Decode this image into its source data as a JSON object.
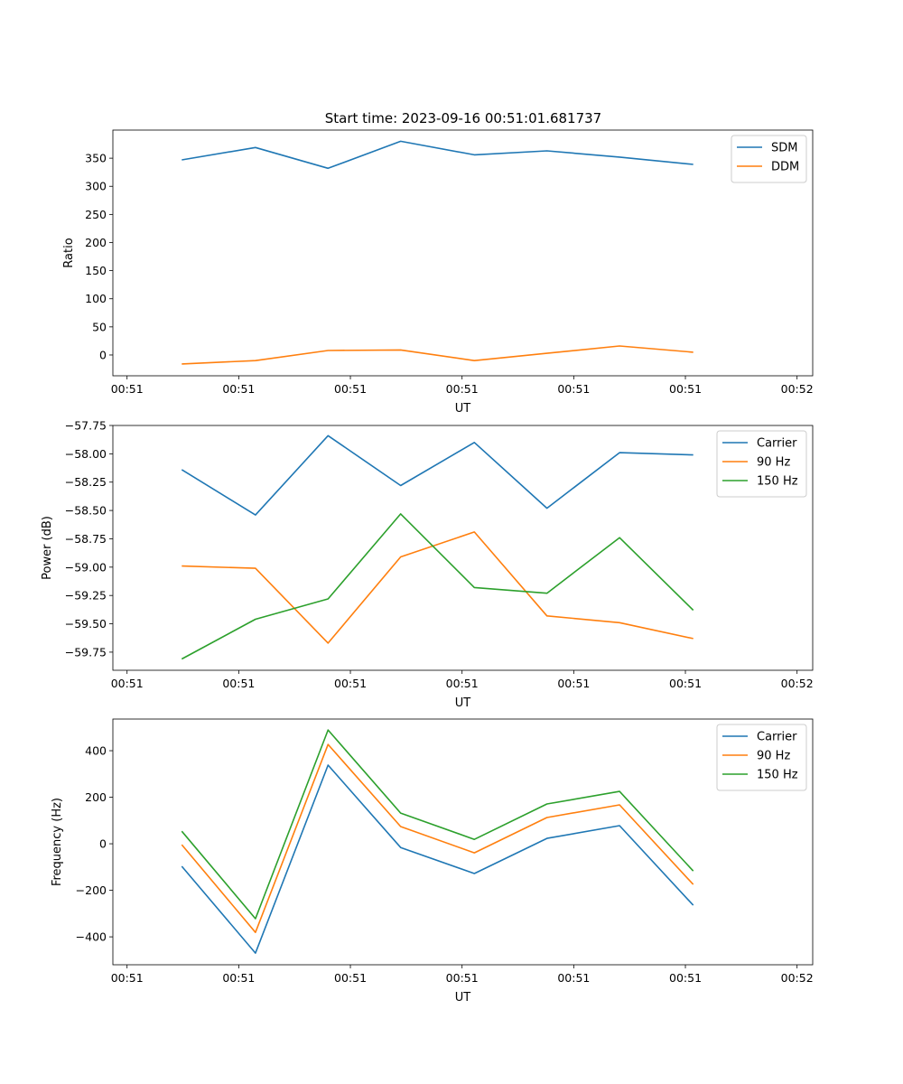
{
  "figure_title": "Start time: 2023-09-16 00:51:01.681737",
  "colors": {
    "c0": "#1f77b4",
    "c1": "#ff7f0e",
    "c2": "#2ca02c"
  },
  "chart_data": [
    {
      "type": "line",
      "title": "Start time: 2023-09-16 00:51:01.681737",
      "xlabel": "UT",
      "ylabel": "Ratio",
      "x_unit": "seconds after 00:51:00",
      "x": [
        4.9,
        11.5,
        18.0,
        24.5,
        31.1,
        37.6,
        44.1,
        50.7
      ],
      "xlim": [
        -1.27,
        61.4
      ],
      "xticks": [
        0,
        10,
        20,
        30,
        40,
        50,
        60
      ],
      "xtick_labels": [
        "00:51",
        "00:51",
        "00:51",
        "00:51",
        "00:51",
        "00:51",
        "00:52"
      ],
      "ylim": [
        -37,
        400
      ],
      "yticks": [
        0,
        50,
        100,
        150,
        200,
        250,
        300,
        350
      ],
      "ytick_labels": [
        "0",
        "50",
        "100",
        "150",
        "200",
        "250",
        "300",
        "350"
      ],
      "legend": "top-right",
      "series": [
        {
          "name": "SDM",
          "color": "#1f77b4",
          "values": [
            347,
            369,
            332,
            380,
            356,
            363,
            352,
            339
          ]
        },
        {
          "name": "DDM",
          "color": "#ff7f0e",
          "values": [
            -16,
            -10,
            8,
            9,
            -10,
            3,
            16,
            5
          ]
        }
      ]
    },
    {
      "type": "line",
      "xlabel": "UT",
      "ylabel": "Power (dB)",
      "x_unit": "seconds after 00:51:00",
      "x": [
        4.9,
        11.5,
        18.0,
        24.5,
        31.1,
        37.6,
        44.1,
        50.7
      ],
      "xlim": [
        -1.27,
        61.4
      ],
      "xticks": [
        0,
        10,
        20,
        30,
        40,
        50,
        60
      ],
      "xtick_labels": [
        "00:51",
        "00:51",
        "00:51",
        "00:51",
        "00:51",
        "00:51",
        "00:52"
      ],
      "ylim": [
        -59.91,
        -57.75
      ],
      "yticks": [
        -57.75,
        -58.0,
        -58.25,
        -58.5,
        -58.75,
        -59.0,
        -59.25,
        -59.5,
        -59.75
      ],
      "ytick_labels": [
        "−57.75",
        "−58.00",
        "−58.25",
        "−58.50",
        "−58.75",
        "−59.00",
        "−59.25",
        "−59.50",
        "−59.75"
      ],
      "legend": "top-right",
      "series": [
        {
          "name": "Carrier",
          "color": "#1f77b4",
          "values": [
            -58.14,
            -58.54,
            -57.84,
            -58.28,
            -57.9,
            -58.48,
            -57.99,
            -58.01
          ]
        },
        {
          "name": "90 Hz",
          "color": "#ff7f0e",
          "values": [
            -58.99,
            -59.01,
            -59.67,
            -58.91,
            -58.69,
            -59.43,
            -59.49,
            -59.63
          ]
        },
        {
          "name": "150 Hz",
          "color": "#2ca02c",
          "values": [
            -59.81,
            -59.46,
            -59.28,
            -58.53,
            -59.18,
            -59.23,
            -58.74,
            -59.38
          ]
        }
      ]
    },
    {
      "type": "line",
      "xlabel": "UT",
      "ylabel": "Frequency (Hz)",
      "x_unit": "seconds after 00:51:00",
      "x": [
        4.9,
        11.5,
        18.0,
        24.5,
        31.1,
        37.6,
        44.1,
        50.7
      ],
      "xlim": [
        -1.27,
        61.4
      ],
      "xticks": [
        0,
        10,
        20,
        30,
        40,
        50,
        60
      ],
      "xtick_labels": [
        "00:51",
        "00:51",
        "00:51",
        "00:51",
        "00:51",
        "00:51",
        "00:52"
      ],
      "ylim": [
        -520,
        536
      ],
      "yticks": [
        -400,
        -200,
        0,
        200,
        400
      ],
      "ytick_labels": [
        "−400",
        "−200",
        "0",
        "200",
        "400"
      ],
      "legend": "top-right",
      "series": [
        {
          "name": "Carrier",
          "color": "#1f77b4",
          "values": [
            -97,
            -470,
            338,
            -16,
            -128,
            23,
            78,
            -264
          ]
        },
        {
          "name": "90 Hz",
          "color": "#ff7f0e",
          "values": [
            -4,
            -381,
            427,
            74,
            -39,
            113,
            167,
            -175
          ]
        },
        {
          "name": "150 Hz",
          "color": "#2ca02c",
          "values": [
            54,
            -322,
            489,
            132,
            19,
            171,
            225,
            -117
          ]
        }
      ]
    }
  ]
}
